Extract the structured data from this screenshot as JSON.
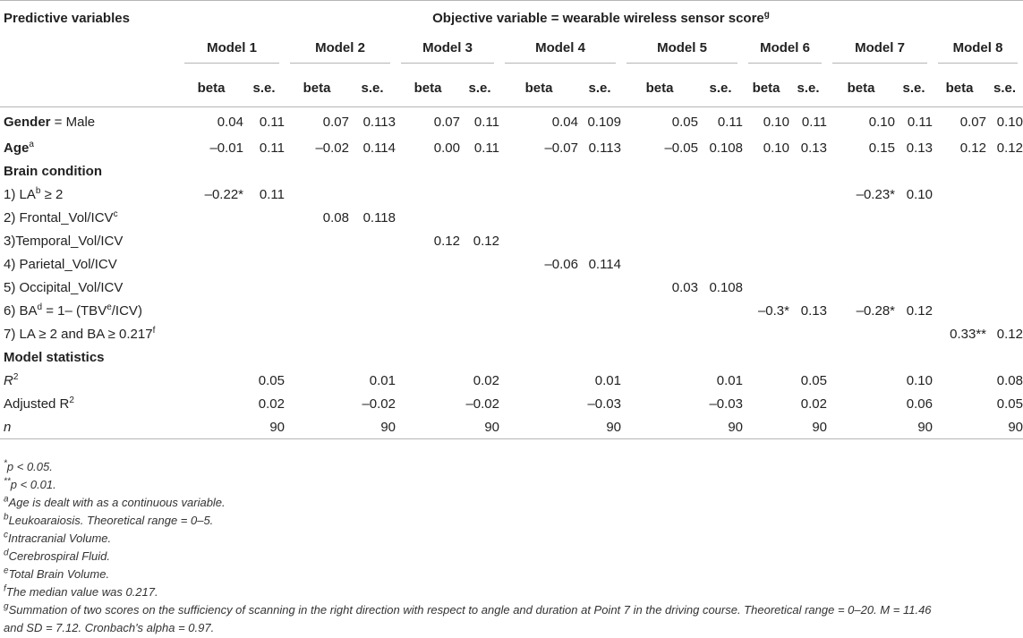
{
  "header": {
    "predictive_label": "Predictive variables",
    "objective_label": "Objective variable = wearable wireless sensor score",
    "objective_sup": "g",
    "models": [
      "Model 1",
      "Model 2",
      "Model 3",
      "Model 4",
      "Model 5",
      "Model 6",
      "Model 7",
      "Model 8"
    ],
    "beta": "beta",
    "se": "s.e."
  },
  "rows": {
    "gender": {
      "label_bold": "Gender",
      "label_rest": " = Male",
      "vals": [
        "0.04",
        "0.11",
        "0.07",
        "0.113",
        "0.07",
        "0.11",
        "0.04",
        "0.109",
        "0.05",
        "0.11",
        "0.10",
        "0.11",
        "0.10",
        "0.11",
        "0.07",
        "0.10"
      ]
    },
    "age": {
      "label_bold": "Age",
      "sup": "a",
      "vals": [
        "–0.01",
        "0.11",
        "–0.02",
        "0.114",
        "0.00",
        "0.11",
        "–0.07",
        "0.113",
        "–0.05",
        "0.108",
        "0.10",
        "0.13",
        "0.15",
        "0.13",
        "0.12",
        "0.12"
      ]
    },
    "brain_condition": "Brain condition",
    "la": {
      "label_pre": "1) LA",
      "sup": "b",
      "label_post": " ≥ 2",
      "m1_beta": "–0.22*",
      "m1_se": "0.11",
      "m7_beta": "–0.23*",
      "m7_se": "0.10"
    },
    "frontal": {
      "label_pre": "2) Frontal_Vol/ICV",
      "sup": "c",
      "beta": "0.08",
      "se": "0.118"
    },
    "temporal": {
      "label": "3)Temporal_Vol/ICV",
      "beta": "0.12",
      "se": "0.12"
    },
    "parietal": {
      "label": "4) Parietal_Vol/ICV",
      "beta": "–0.06",
      "se": "0.114"
    },
    "occipital": {
      "label": "5) Occipital_Vol/ICV",
      "beta": "0.03",
      "se": "0.108"
    },
    "ba": {
      "label_pre": "6) BA",
      "sup_d": "d",
      "label_mid": " = 1– (TBV",
      "sup_e": "e",
      "label_post": "/ICV)",
      "m6_beta": "–0.3*",
      "m6_se": "0.13",
      "m7_beta": "–0.28*",
      "m7_se": "0.12"
    },
    "la_ba": {
      "label_pre": "7) LA ≥ 2 and BA ≥ 0.217",
      "sup": "f",
      "beta": "0.33**",
      "se": "0.12"
    },
    "model_statistics": "Model statistics",
    "r2": {
      "label": "R",
      "sup": "2",
      "vals": [
        "0.05",
        "0.01",
        "0.02",
        "0.01",
        "0.01",
        "0.05",
        "0.10",
        "0.08"
      ]
    },
    "adj_r2": {
      "label": "Adjusted R",
      "sup": "2",
      "vals": [
        "0.02",
        "–0.02",
        "–0.02",
        "–0.03",
        "–0.03",
        "0.02",
        "0.06",
        "0.05"
      ]
    },
    "n": {
      "label": "n",
      "vals": [
        "90",
        "90",
        "90",
        "90",
        "90",
        "90",
        "90",
        "90"
      ]
    }
  },
  "notes": [
    {
      "sup": "*",
      "text": "p < 0.05."
    },
    {
      "sup": "**",
      "text": "p < 0.01."
    },
    {
      "sup": "a",
      "text": "Age is dealt with as a continuous variable."
    },
    {
      "sup": "b",
      "text": "Leukoaraiosis. Theoretical range = 0–5."
    },
    {
      "sup": "c",
      "text": "Intracranial Volume."
    },
    {
      "sup": "d",
      "text": "Cerebrospiral Fluid."
    },
    {
      "sup": "e",
      "text": "Total Brain Volume."
    },
    {
      "sup": "f",
      "text": "The median value was 0.217."
    },
    {
      "sup": "g",
      "text": "Summation of two scores on the sufficiency of scanning in the right direction with respect to angle and duration at Point 7 in the driving course. Theoretical range = 0–20. M = 11.46"
    },
    {
      "sup": "",
      "text": "and SD = 7.12. Cronbach's alpha = 0.97."
    }
  ]
}
